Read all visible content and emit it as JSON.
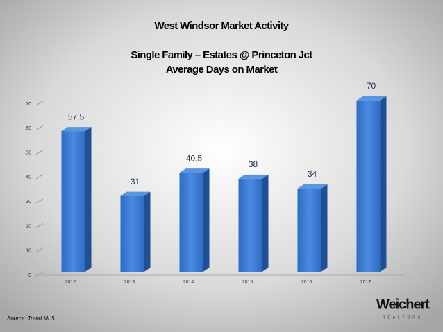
{
  "chart_data": {
    "type": "bar3d",
    "title": "West Windsor Market Activity",
    "subtitle": "Single Family – Estates @ Princeton Jct",
    "subtitle2": "Average Days on Market",
    "categories": [
      "2012",
      "2013",
      "2014",
      "2015",
      "2016",
      "2017"
    ],
    "values": [
      57.5,
      31,
      40.5,
      38,
      34,
      70
    ],
    "color": "#3a7bd5",
    "ylim": [
      0,
      70
    ],
    "yticks": [
      0,
      10,
      20,
      30,
      40,
      50,
      60,
      70
    ],
    "source": "Source:  Trend MLS"
  },
  "branding": {
    "logo": "Weichert",
    "tagline": "REALTORS"
  }
}
